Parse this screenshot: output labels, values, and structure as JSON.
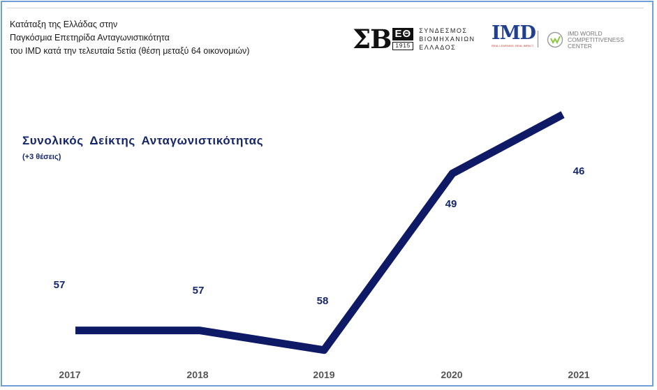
{
  "header": {
    "line1": "Κατάταξη της Ελλάδας στην",
    "line2": "Παγκόσμια Επετηρίδα Ανταγωνιστικότητα",
    "line3": "του IMD κατά την τελευταία 5ετία (θέση μεταξύ 64 οικονομιών)"
  },
  "logos": {
    "sev_mark": "ΣΒ",
    "sev_box": "ΕΘ",
    "sev_year": "1915",
    "sev_line1": "ΣΥΝΔΕΣΜΟΣ",
    "sev_line2": "ΒΙΟΜΗΧΑΝΙΩΝ",
    "sev_line3": "ΕΛΛΑΔΟΣ",
    "imd_mark": "IMD",
    "imd_tag": "REAL LEARNING. REAL IMPACT",
    "wcc_line1": "IMD WORLD",
    "wcc_line2": "COMPETITIVENESS",
    "wcc_line3": "CENTER"
  },
  "colors": {
    "line": "#0f1a66",
    "label": "#16266b",
    "axis_text": "#555555",
    "frame": "#6f9fd8"
  },
  "chart_data": {
    "type": "line",
    "title": "Συνολικός  Δείκτης  Ανταγωνιστικότητας",
    "subtitle": "(+3 θέσεις)",
    "categories": [
      "2017",
      "2018",
      "2019",
      "2020",
      "2021"
    ],
    "series": [
      {
        "values": [
          57,
          57,
          58,
          49,
          46
        ]
      }
    ],
    "y_inverted": true,
    "ylim": [
      60,
      44
    ],
    "grid": false,
    "legend": "none"
  }
}
